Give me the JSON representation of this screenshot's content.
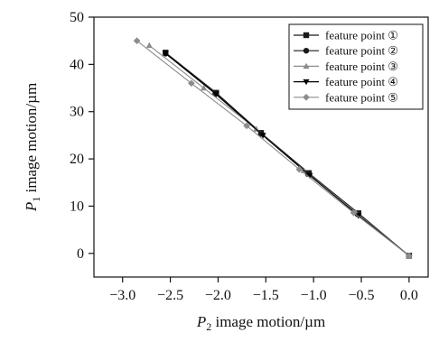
{
  "chart_data": {
    "type": "line",
    "title": "",
    "xlabel": {
      "symbol": "P",
      "subscript": "2",
      "rest": " image motion/µm"
    },
    "ylabel": {
      "symbol": "P",
      "subscript": "1",
      "rest": " image motion/µm"
    },
    "xlim": [
      -3.3,
      0.2
    ],
    "ylim": [
      -5,
      50
    ],
    "xticks": [
      -3.0,
      -2.5,
      -2.0,
      -1.5,
      -1.0,
      -0.5,
      0.0
    ],
    "xtick_labels": [
      "−3.0",
      "−2.5",
      "−2.0",
      "−1.5",
      "−1.0",
      "−0.5",
      "0.0"
    ],
    "yticks": [
      0,
      10,
      20,
      30,
      40,
      50
    ],
    "ytick_labels": [
      "0",
      "10",
      "20",
      "30",
      "40",
      "50"
    ],
    "grid": false,
    "legend_position": "top-right",
    "series": [
      {
        "name": "feature point ①",
        "marker": "square",
        "color": "#1a1a1a",
        "x": [
          -2.55,
          -2.02,
          -1.55,
          -1.05,
          -0.53,
          0.0
        ],
        "y": [
          42.5,
          34.0,
          25.5,
          17.0,
          8.5,
          -0.5
        ]
      },
      {
        "name": "feature point ②",
        "marker": "circle",
        "color": "#1a1a1a",
        "x": [
          -2.55,
          -2.03,
          -1.55,
          -1.06,
          -0.54,
          0.0
        ],
        "y": [
          42.3,
          33.8,
          25.3,
          16.8,
          8.3,
          -0.5
        ]
      },
      {
        "name": "feature point ③",
        "marker": "triangle-up",
        "color": "#8a8a8a",
        "x": [
          -2.72,
          -2.15,
          -1.6,
          -1.1,
          -0.56,
          0.0
        ],
        "y": [
          44.0,
          35.0,
          26.3,
          17.5,
          8.7,
          -0.5
        ]
      },
      {
        "name": "feature point ④",
        "marker": "triangle-down",
        "color": "#000000",
        "x": [
          -2.55,
          -2.02,
          -1.53,
          -1.04,
          -0.53,
          0.0
        ],
        "y": [
          42.3,
          33.7,
          25.0,
          16.5,
          8.0,
          -0.5
        ]
      },
      {
        "name": "feature point ⑤",
        "marker": "diamond",
        "color": "#8c8c8c",
        "x": [
          -2.85,
          -2.28,
          -1.7,
          -1.15,
          -0.58,
          0.0
        ],
        "y": [
          45.0,
          36.0,
          27.0,
          17.8,
          8.6,
          -0.5
        ]
      }
    ]
  }
}
